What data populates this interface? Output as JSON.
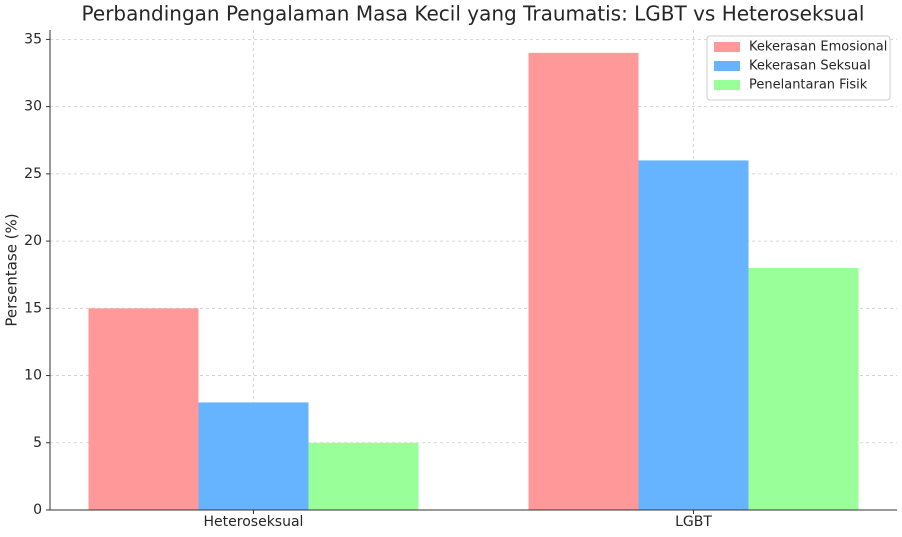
{
  "chart_data": {
    "type": "bar",
    "title": "Perbandingan Pengalaman Masa Kecil yang Traumatis: LGBT vs Heteroseksual",
    "y_label": "Persentase (%)",
    "categories": [
      "Heteroseksual",
      "LGBT"
    ],
    "series": [
      {
        "name": "Kekerasan Emosional",
        "color": "#ff9999",
        "values": [
          15,
          34
        ]
      },
      {
        "name": "Kekerasan Seksual",
        "color": "#66b3ff",
        "values": [
          8,
          26
        ]
      },
      {
        "name": "Penelantaran Fisik",
        "color": "#99ff99",
        "values": [
          5,
          18
        ]
      }
    ],
    "ylim": [
      0,
      35.7
    ],
    "yticks": [
      0,
      5,
      10,
      15,
      20,
      25,
      30,
      35
    ],
    "grid": true,
    "legend": "upper right"
  }
}
